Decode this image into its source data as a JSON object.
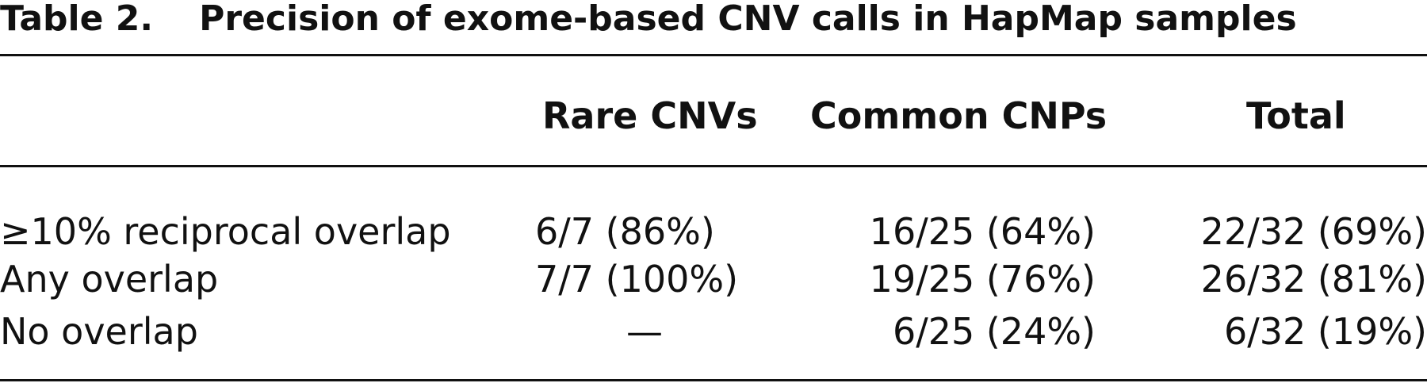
{
  "table": {
    "title_label": "Table 2.",
    "title_text": "Precision of exome-based CNV calls in HapMap samples",
    "columns": [
      "",
      "Rare CNVs",
      "Common CNPs",
      "Total"
    ],
    "rows": [
      {
        "label": "≥10% reciprocal overlap",
        "rare": "6/7 (86%)",
        "common": "16/25 (64%)",
        "total": "22/32 (69%)"
      },
      {
        "label": "Any overlap",
        "rare": "7/7 (100%)",
        "common": "19/25 (76%)",
        "total": "26/32 (81%)"
      },
      {
        "label": "No overlap",
        "rare": "—",
        "common": "6/25 (24%)",
        "total": "6/32 (19%)"
      }
    ]
  }
}
